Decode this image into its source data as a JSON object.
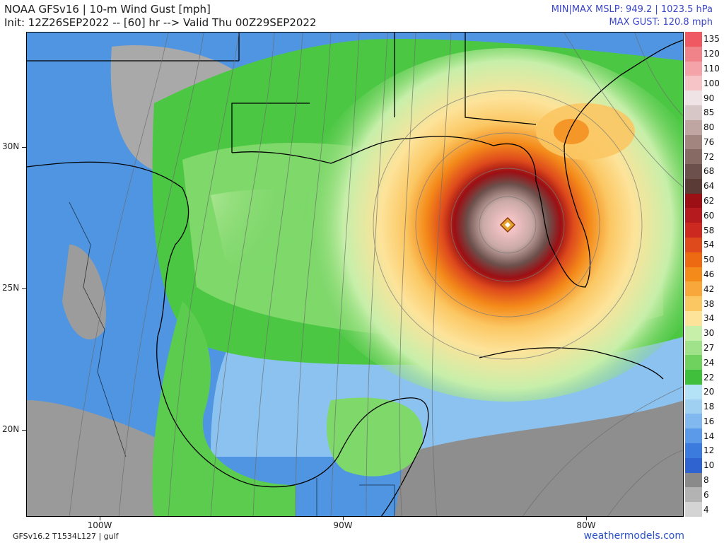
{
  "header": {
    "title_line1": "NOAA GFSv16 | 10-m Wind Gust [mph]",
    "title_line2": "Init: 12Z26SEP2022 -- [60] hr --> Valid Thu 00Z29SEP2022",
    "right_line1": "MIN|MAX MSLP: 949.2 | 1023.5 hPa",
    "right_line2": "MAX GUST: 120.8 mph"
  },
  "axes": {
    "lat_labels": [
      "30N",
      "25N",
      "20N"
    ],
    "lon_labels": [
      "100W",
      "90W",
      "80W"
    ]
  },
  "colorbar": {
    "labels": [
      "135",
      "120",
      "110",
      "100",
      "90",
      "85",
      "80",
      "76",
      "72",
      "68",
      "64",
      "62",
      "60",
      "58",
      "54",
      "50",
      "46",
      "42",
      "38",
      "34",
      "30",
      "27",
      "24",
      "22",
      "20",
      "18",
      "16",
      "14",
      "12",
      "10",
      "8",
      "6",
      "4"
    ],
    "colors": [
      "#ef5a62",
      "#f0828a",
      "#f4a3a8",
      "#f6c4c6",
      "#efe3e6",
      "#d8c7c7",
      "#bfa6a2",
      "#a38580",
      "#876a64",
      "#6c504b",
      "#5a3b36",
      "#9c0f14",
      "#b51a1e",
      "#cc2a20",
      "#de4a1c",
      "#ee6a12",
      "#f48a1a",
      "#f8a83a",
      "#fbc763",
      "#fde39a",
      "#c7efaa",
      "#9fe28a",
      "#6fd15e",
      "#3fbf3b",
      "#b4e3f7",
      "#9fd0f2",
      "#80b8ef",
      "#5b9ae8",
      "#3b7bdd",
      "#2f63cf",
      "#8a8a8a",
      "#b3b3b3",
      "#d4d4d4"
    ]
  },
  "footer": {
    "left": "GFSv16.2 T1534L127 | gulf",
    "right": "weathermodels.com"
  }
}
